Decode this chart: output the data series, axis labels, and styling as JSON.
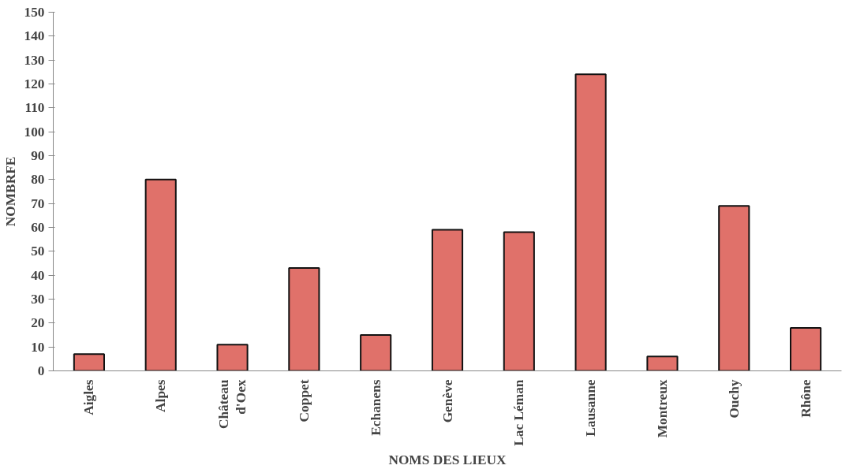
{
  "chart_data": {
    "type": "bar",
    "xlabel": "NOMS DES LIEUX",
    "ylabel": "NOMBRFE",
    "categories": [
      "Aigles",
      "Alpes",
      "Château\nd'Oex",
      "Coppet",
      "Echanens",
      "Genève",
      "Lac Léman",
      "Lausanne",
      "Montreux",
      "Ouchy",
      "Rhône"
    ],
    "values": [
      7,
      80,
      11,
      43,
      15,
      59,
      58,
      124,
      6,
      69,
      18
    ],
    "color": "#e0716a",
    "ylim": [
      0,
      150
    ],
    "yticks": [
      0,
      10,
      20,
      30,
      40,
      50,
      60,
      70,
      80,
      90,
      100,
      110,
      120,
      130,
      140,
      150
    ],
    "grid": false
  }
}
